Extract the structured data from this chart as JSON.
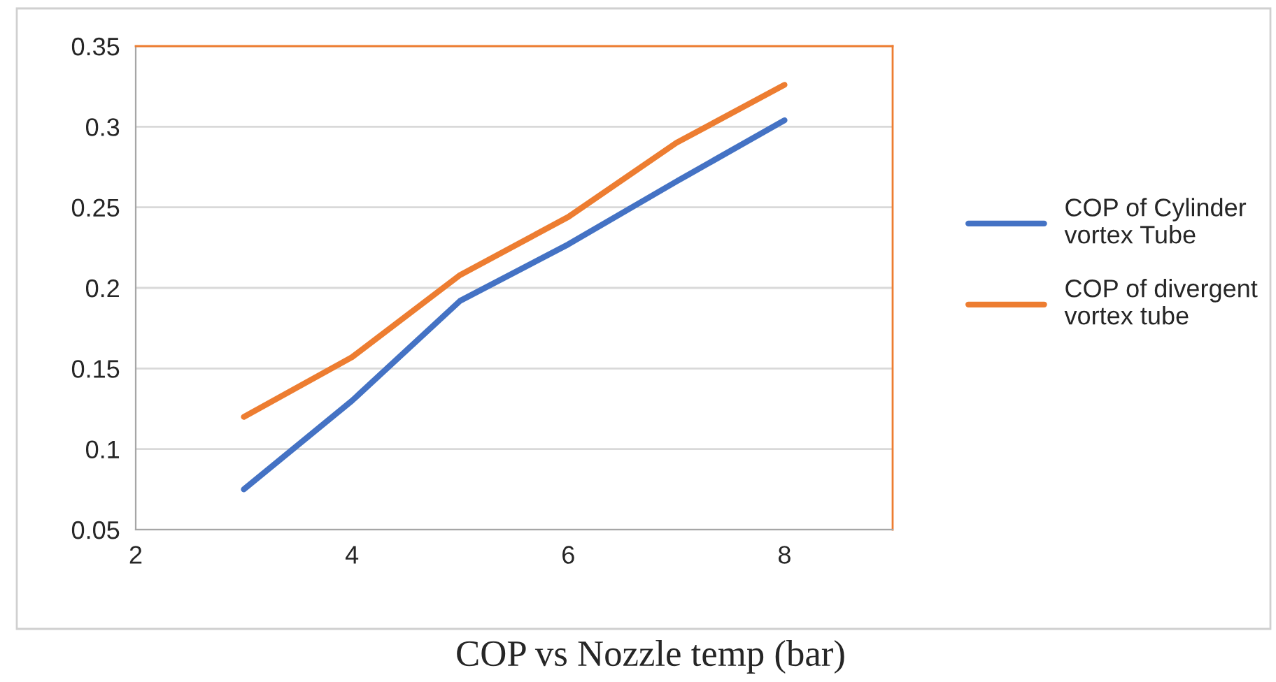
{
  "chart_data": {
    "type": "line",
    "title": "COP vs Nozzle temp (bar)",
    "x": [
      3,
      4,
      5,
      6,
      7,
      8
    ],
    "series": [
      {
        "name": "COP of Cylinder vortex Tube",
        "color": "#4472c4",
        "values": [
          0.075,
          0.13,
          0.192,
          0.227,
          0.266,
          0.304
        ]
      },
      {
        "name": "COP of divergent vortex tube",
        "color": "#ed7d31",
        "values": [
          0.12,
          0.157,
          0.208,
          0.244,
          0.29,
          0.326
        ]
      }
    ],
    "xlim": [
      2,
      9
    ],
    "xticks": [
      2,
      4,
      6,
      8
    ],
    "ylim": [
      0.05,
      0.35
    ],
    "yticks": [
      {
        "value": 0.05,
        "label": "0.05"
      },
      {
        "value": 0.1,
        "label": "0.1"
      },
      {
        "value": 0.15,
        "label": "0.15"
      },
      {
        "value": 0.2,
        "label": "0.2"
      },
      {
        "value": 0.25,
        "label": "0.25"
      },
      {
        "value": 0.3,
        "label": "0.3"
      },
      {
        "value": 0.35,
        "label": "0.35"
      }
    ],
    "grid": "y",
    "legend": "right",
    "marker": "none",
    "line_style": "solid"
  }
}
